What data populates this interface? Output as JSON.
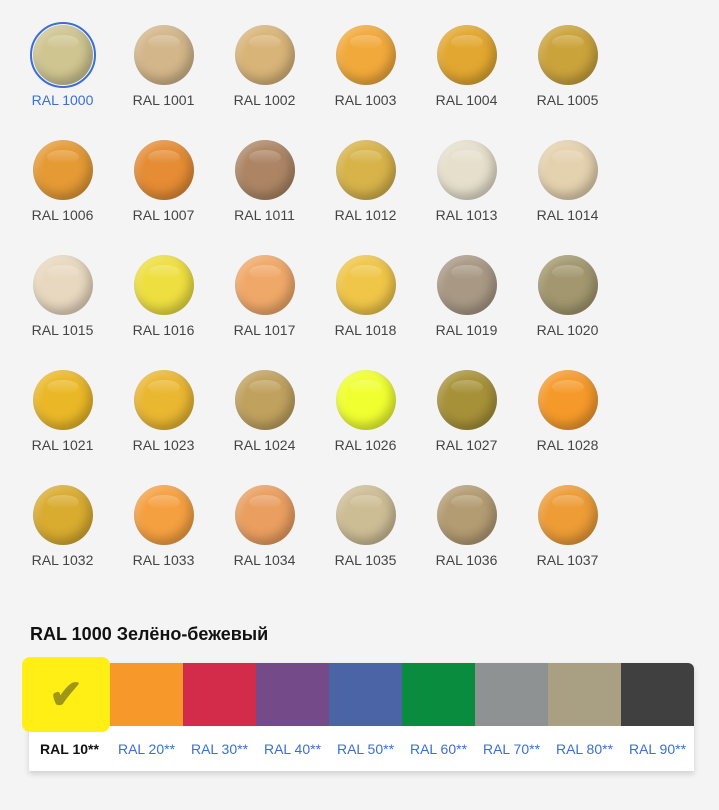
{
  "swatches": [
    {
      "label": "RAL 1000",
      "color": "#cfc591",
      "selected": true
    },
    {
      "label": "RAL 1001",
      "color": "#d3b68a"
    },
    {
      "label": "RAL 1002",
      "color": "#d9b478"
    },
    {
      "label": "RAL 1003",
      "color": "#f2a93b"
    },
    {
      "label": "RAL 1004",
      "color": "#e2a730"
    },
    {
      "label": "RAL 1005",
      "color": "#cba33b"
    },
    {
      "label": "RAL 1006",
      "color": "#e59a34"
    },
    {
      "label": "RAL 1007",
      "color": "#e58c34"
    },
    {
      "label": "RAL 1011",
      "color": "#ad8564"
    },
    {
      "label": "RAL 1012",
      "color": "#d7b349"
    },
    {
      "label": "RAL 1013",
      "color": "#e6dfcc"
    },
    {
      "label": "RAL 1014",
      "color": "#e4d1ae"
    },
    {
      "label": "RAL 1015",
      "color": "#e8d8bf"
    },
    {
      "label": "RAL 1016",
      "color": "#eedf40"
    },
    {
      "label": "RAL 1017",
      "color": "#f0a868"
    },
    {
      "label": "RAL 1018",
      "color": "#f0c648"
    },
    {
      "label": "RAL 1019",
      "color": "#a89884"
    },
    {
      "label": "RAL 1020",
      "color": "#a2976e"
    },
    {
      "label": "RAL 1021",
      "color": "#eab827"
    },
    {
      "label": "RAL 1023",
      "color": "#eab731"
    },
    {
      "label": "RAL 1024",
      "color": "#c0a15e"
    },
    {
      "label": "RAL 1026",
      "color": "#f0ff30"
    },
    {
      "label": "RAL 1027",
      "color": "#a79138"
    },
    {
      "label": "RAL 1028",
      "color": "#f59a2a"
    },
    {
      "label": "RAL 1032",
      "color": "#d9ac2f"
    },
    {
      "label": "RAL 1033",
      "color": "#f5a040"
    },
    {
      "label": "RAL 1034",
      "color": "#ea9e5f"
    },
    {
      "label": "RAL 1035",
      "color": "#cdbd95"
    },
    {
      "label": "RAL 1036",
      "color": "#b39b72"
    },
    {
      "label": "RAL 1037",
      "color": "#ed9c36"
    }
  ],
  "selected_title": "RAL 1000 Зелёно-бежевый",
  "groups": [
    {
      "label": "RAL 10**",
      "color": "#ffef14",
      "selected": true,
      "icon": "check-icon"
    },
    {
      "label": "RAL 20**",
      "color": "#f7982a"
    },
    {
      "label": "RAL 30**",
      "color": "#d32c4a"
    },
    {
      "label": "RAL 40**",
      "color": "#744b88"
    },
    {
      "label": "RAL 50**",
      "color": "#4a64a6"
    },
    {
      "label": "RAL 60**",
      "color": "#0a8c3e"
    },
    {
      "label": "RAL 70**",
      "color": "#8f9292"
    },
    {
      "label": "RAL 80**",
      "color": "#a99f82"
    },
    {
      "label": "RAL 90**",
      "color": "#404040"
    }
  ],
  "check_glyph": "✔"
}
